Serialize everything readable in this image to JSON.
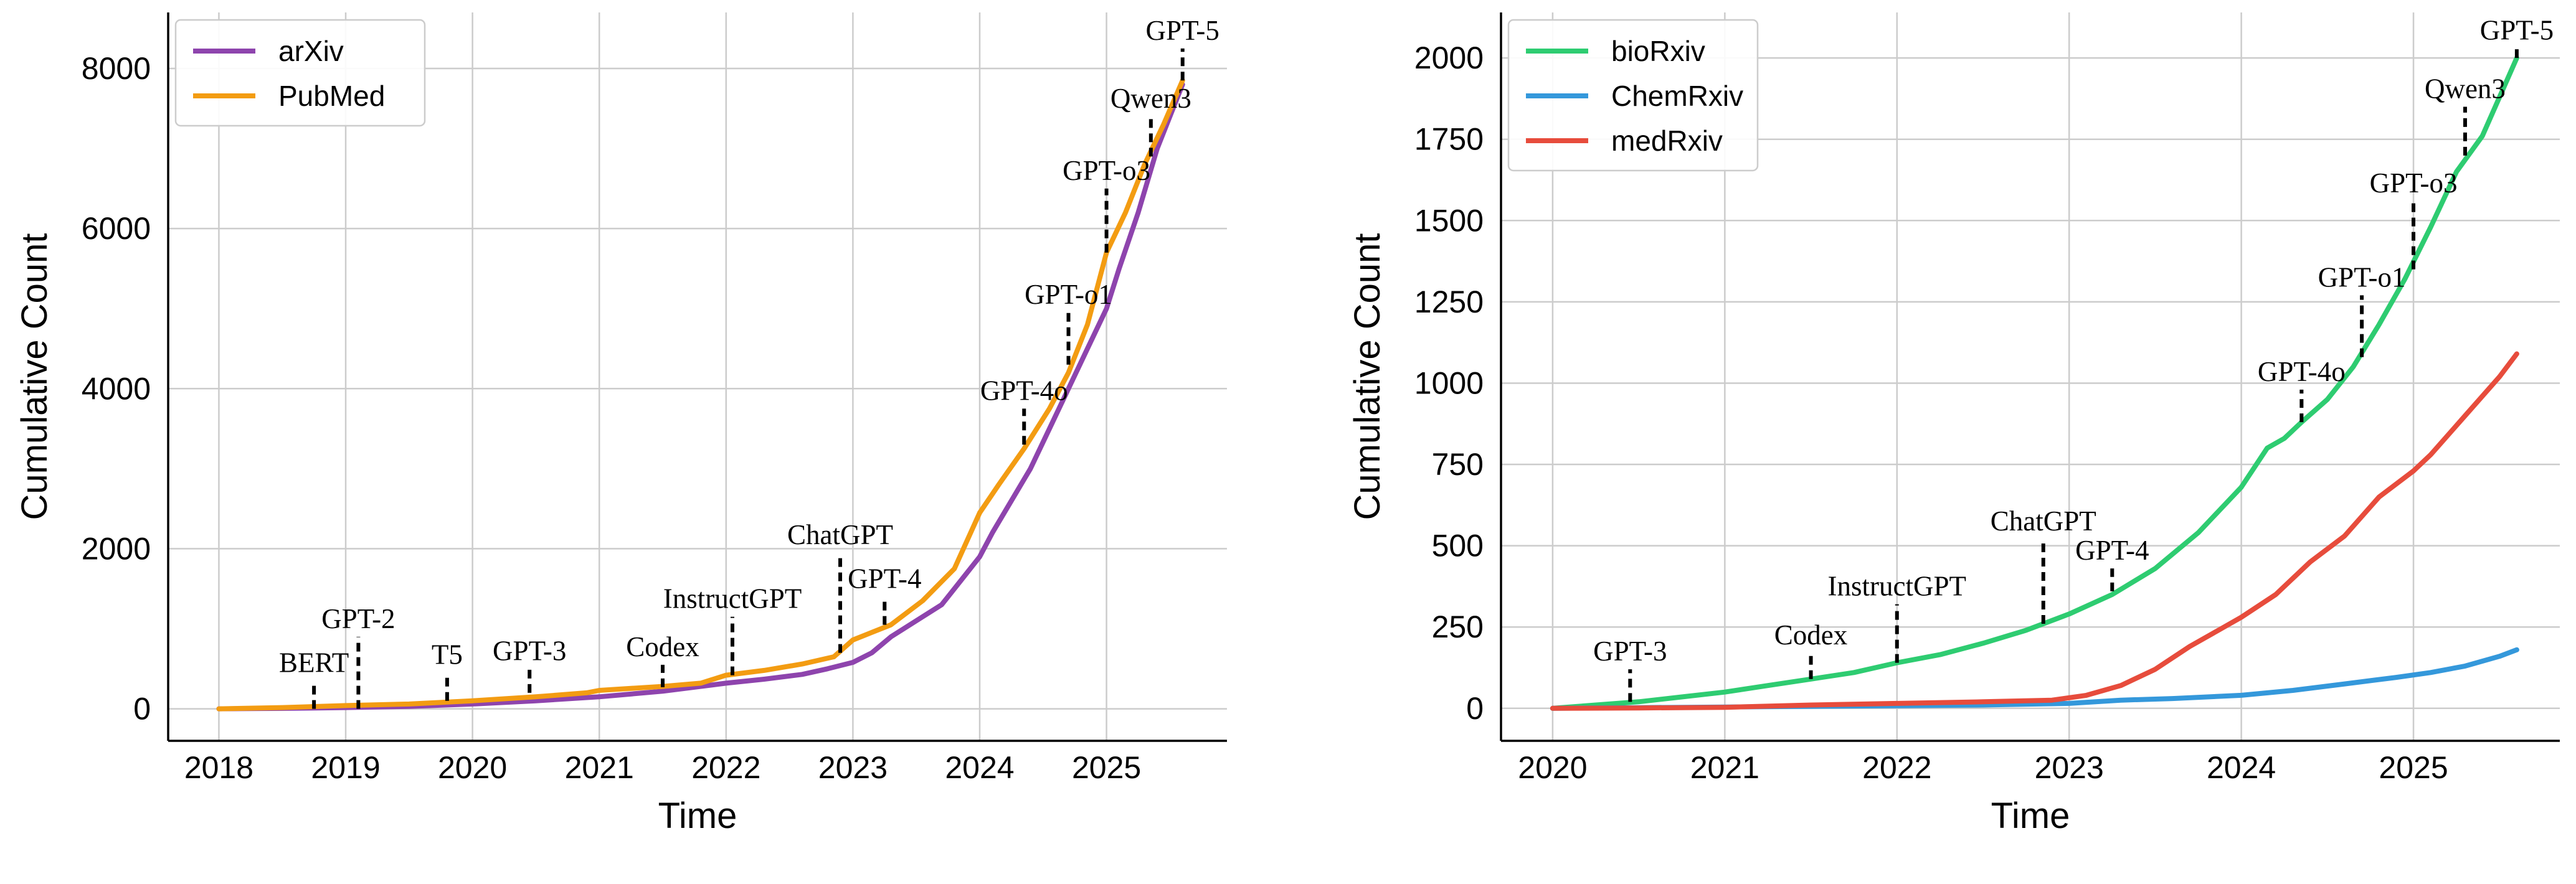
{
  "chart_data": [
    {
      "type": "line",
      "xlabel": "Time",
      "ylabel": "Cumulative Count",
      "xlim": [
        2017.6,
        2025.95
      ],
      "ylim": [
        -400,
        8700
      ],
      "xticks": [
        2018,
        2019,
        2020,
        2021,
        2022,
        2023,
        2024,
        2025
      ],
      "xtick_labels": [
        "2018",
        "2019",
        "2020",
        "2021",
        "2022",
        "2023",
        "2024",
        "2025"
      ],
      "yticks": [
        0,
        2000,
        4000,
        6000,
        8000
      ],
      "ytick_labels": [
        "0",
        "2000",
        "4000",
        "6000",
        "8000"
      ],
      "grid": true,
      "legend_position": "top-left",
      "series": [
        {
          "name": "arXiv",
          "color": "#8e44ad",
          "x": [
            2018.0,
            2018.5,
            2019.0,
            2019.5,
            2020.0,
            2020.5,
            2021.0,
            2021.5,
            2022.0,
            2022.3,
            2022.6,
            2022.8,
            2023.0,
            2023.15,
            2023.3,
            2023.5,
            2023.7,
            2023.85,
            2024.0,
            2024.1,
            2024.25,
            2024.4,
            2024.55,
            2024.7,
            2024.85,
            2025.0,
            2025.1,
            2025.25,
            2025.4,
            2025.6
          ],
          "y": [
            0,
            5,
            15,
            30,
            60,
            100,
            150,
            220,
            320,
            370,
            430,
            500,
            580,
            700,
            900,
            1100,
            1300,
            1600,
            1900,
            2200,
            2600,
            3000,
            3500,
            4000,
            4500,
            5000,
            5500,
            6200,
            7000,
            7800
          ]
        },
        {
          "name": "PubMed",
          "color": "#f39c12",
          "x": [
            2018.0,
            2018.5,
            2019.0,
            2019.5,
            2020.0,
            2020.5,
            2020.9,
            2021.0,
            2021.5,
            2021.8,
            2022.0,
            2022.3,
            2022.6,
            2022.85,
            2023.0,
            2023.3,
            2023.55,
            2023.8,
            2024.0,
            2024.15,
            2024.35,
            2024.55,
            2024.7,
            2024.85,
            2025.0,
            2025.15,
            2025.3,
            2025.45,
            2025.6
          ],
          "y": [
            0,
            15,
            40,
            60,
            100,
            150,
            200,
            230,
            280,
            320,
            420,
            480,
            560,
            650,
            860,
            1050,
            1350,
            1750,
            2450,
            2800,
            3250,
            3750,
            4200,
            4800,
            5700,
            6200,
            6800,
            7300,
            7850
          ]
        }
      ],
      "annotations": [
        {
          "label": "BERT",
          "x": 2018.75,
          "y_from": 0,
          "y_to": 350
        },
        {
          "label": "GPT-2",
          "x": 2019.1,
          "y_from": 0,
          "y_to": 900
        },
        {
          "label": "T5",
          "x": 2019.8,
          "y_from": 100,
          "y_to": 450
        },
        {
          "label": "GPT-3",
          "x": 2020.45,
          "y_from": 200,
          "y_to": 500
        },
        {
          "label": "Codex",
          "x": 2021.5,
          "y_from": 270,
          "y_to": 550
        },
        {
          "label": "InstructGPT",
          "x": 2022.05,
          "y_from": 420,
          "y_to": 1150
        },
        {
          "label": "ChatGPT",
          "x": 2022.9,
          "y_from": 700,
          "y_to": 1950
        },
        {
          "label": "GPT-4",
          "x": 2023.25,
          "y_from": 1050,
          "y_to": 1400
        },
        {
          "label": "GPT-4o",
          "x": 2024.35,
          "y_from": 3300,
          "y_to": 3750
        },
        {
          "label": "GPT-o1",
          "x": 2024.7,
          "y_from": 4300,
          "y_to": 4950
        },
        {
          "label": "GPT-o3",
          "x": 2025.0,
          "y_from": 5700,
          "y_to": 6500
        },
        {
          "label": "Qwen3",
          "x": 2025.35,
          "y_from": 6900,
          "y_to": 7400
        },
        {
          "label": "GPT-5",
          "x": 2025.6,
          "y_from": 7850,
          "y_to": 8250
        }
      ]
    },
    {
      "type": "line",
      "xlabel": "Time",
      "ylabel": "Cumulative Count",
      "xlim": [
        2019.7,
        2025.85
      ],
      "ylim": [
        -100,
        2140
      ],
      "xticks": [
        2020,
        2021,
        2022,
        2023,
        2024,
        2025
      ],
      "xtick_labels": [
        "2020",
        "2021",
        "2022",
        "2023",
        "2024",
        "2025"
      ],
      "yticks": [
        0,
        250,
        500,
        750,
        1000,
        1250,
        1500,
        1750,
        2000
      ],
      "ytick_labels": [
        "0",
        "250",
        "500",
        "750",
        "1000",
        "1250",
        "1500",
        "1750",
        "2000"
      ],
      "grid": true,
      "legend_position": "top-left",
      "series": [
        {
          "name": "bioRxiv",
          "color": "#2ecc71",
          "x": [
            2020.0,
            2020.25,
            2020.5,
            2020.75,
            2021.0,
            2021.25,
            2021.5,
            2021.75,
            2022.0,
            2022.25,
            2022.5,
            2022.75,
            2023.0,
            2023.25,
            2023.5,
            2023.75,
            2024.0,
            2024.15,
            2024.25,
            2024.35,
            2024.5,
            2024.65,
            2024.8,
            2024.95,
            2025.1,
            2025.25,
            2025.4,
            2025.5,
            2025.6
          ],
          "y": [
            0,
            10,
            20,
            35,
            50,
            70,
            90,
            110,
            140,
            165,
            200,
            240,
            290,
            350,
            430,
            540,
            680,
            800,
            830,
            880,
            950,
            1050,
            1180,
            1320,
            1480,
            1650,
            1760,
            1880,
            2000
          ]
        },
        {
          "name": "ChemRxiv",
          "color": "#3498db",
          "x": [
            2020.0,
            2020.5,
            2021.0,
            2021.5,
            2022.0,
            2022.5,
            2023.0,
            2023.3,
            2023.6,
            2024.0,
            2024.3,
            2024.6,
            2024.9,
            2025.1,
            2025.3,
            2025.5,
            2025.6
          ],
          "y": [
            0,
            2,
            4,
            6,
            8,
            10,
            15,
            25,
            30,
            40,
            55,
            75,
            95,
            110,
            130,
            160,
            180
          ]
        },
        {
          "name": "medRxiv",
          "color": "#e74c3c",
          "x": [
            2020.0,
            2020.5,
            2021.0,
            2021.5,
            2022.0,
            2022.5,
            2022.9,
            2023.1,
            2023.3,
            2023.5,
            2023.7,
            2023.9,
            2024.0,
            2024.2,
            2024.4,
            2024.6,
            2024.8,
            2025.0,
            2025.1,
            2025.3,
            2025.5,
            2025.6
          ],
          "y": [
            0,
            1,
            3,
            10,
            15,
            20,
            25,
            40,
            70,
            120,
            190,
            250,
            280,
            350,
            450,
            530,
            650,
            730,
            780,
            900,
            1020,
            1090
          ]
        }
      ],
      "annotations": [
        {
          "label": "GPT-3",
          "x": 2020.45,
          "y_from": 20,
          "y_to": 120
        },
        {
          "label": "Codex",
          "x": 2021.5,
          "y_from": 90,
          "y_to": 170
        },
        {
          "label": "InstructGPT",
          "x": 2022.0,
          "y_from": 140,
          "y_to": 320
        },
        {
          "label": "ChatGPT",
          "x": 2022.85,
          "y_from": 260,
          "y_to": 520
        },
        {
          "label": "GPT-4",
          "x": 2023.25,
          "y_from": 360,
          "y_to": 430
        },
        {
          "label": "GPT-4o",
          "x": 2024.35,
          "y_from": 880,
          "y_to": 980
        },
        {
          "label": "GPT-o1",
          "x": 2024.7,
          "y_from": 1080,
          "y_to": 1270
        },
        {
          "label": "GPT-o3",
          "x": 2025.0,
          "y_from": 1350,
          "y_to": 1560
        },
        {
          "label": "Qwen3",
          "x": 2025.3,
          "y_from": 1700,
          "y_to": 1850
        },
        {
          "label": "GPT-5",
          "x": 2025.6,
          "y_from": 2000,
          "y_to": 2030
        }
      ]
    }
  ]
}
